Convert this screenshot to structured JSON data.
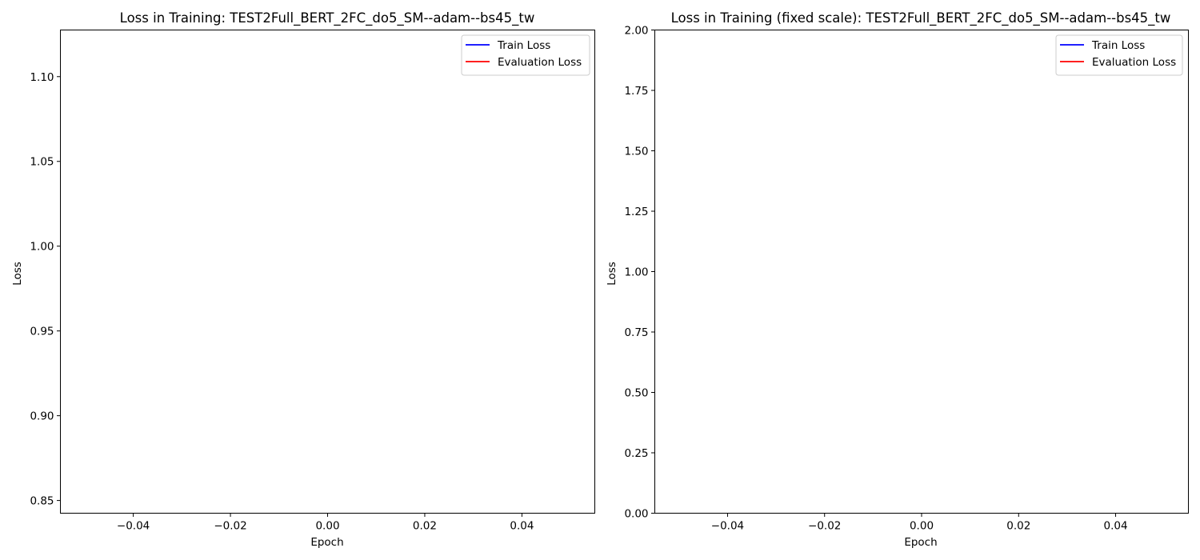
{
  "chart_data": [
    {
      "type": "line",
      "title": "Loss in Training: TEST2Full_BERT_2FC_do5_SM--adam--bs45_tw",
      "xlabel": "Epoch",
      "ylabel": "Loss",
      "xlim": [
        -0.055,
        0.055
      ],
      "ylim": [
        0.8425,
        1.1275
      ],
      "xticks": [
        -0.04,
        -0.02,
        0.0,
        0.02,
        0.04
      ],
      "xtick_labels": [
        "−0.04",
        "−0.02",
        "0.00",
        "0.02",
        "0.04"
      ],
      "yticks": [
        0.85,
        0.9,
        0.95,
        1.0,
        1.05,
        1.1
      ],
      "ytick_labels": [
        "0.85",
        "0.90",
        "0.95",
        "1.00",
        "1.05",
        "1.10"
      ],
      "grid": false,
      "legend": "top-right",
      "series": [
        {
          "name": "Train Loss",
          "color": "#0000ff",
          "x": [],
          "y": []
        },
        {
          "name": "Evaluation Loss",
          "color": "#ff0000",
          "x": [],
          "y": []
        }
      ]
    },
    {
      "type": "line",
      "title": "Loss in Training (fixed scale): TEST2Full_BERT_2FC_do5_SM--adam--bs45_tw",
      "xlabel": "Epoch",
      "ylabel": "Loss",
      "xlim": [
        -0.055,
        0.055
      ],
      "ylim": [
        0.0,
        2.0
      ],
      "xticks": [
        -0.04,
        -0.02,
        0.0,
        0.02,
        0.04
      ],
      "xtick_labels": [
        "−0.04",
        "−0.02",
        "0.00",
        "0.02",
        "0.04"
      ],
      "yticks": [
        0.0,
        0.25,
        0.5,
        0.75,
        1.0,
        1.25,
        1.5,
        1.75,
        2.0
      ],
      "ytick_labels": [
        "0.00",
        "0.25",
        "0.50",
        "0.75",
        "1.00",
        "1.25",
        "1.50",
        "1.75",
        "2.00"
      ],
      "grid": false,
      "legend": "top-right",
      "series": [
        {
          "name": "Train Loss",
          "color": "#0000ff",
          "x": [],
          "y": []
        },
        {
          "name": "Evaluation Loss",
          "color": "#ff0000",
          "x": [],
          "y": []
        }
      ]
    }
  ]
}
